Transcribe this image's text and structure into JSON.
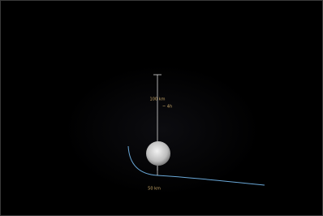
{
  "labels": {
    "apoapsis": "100 km",
    "marker": "~ 4h",
    "periapsis": "50 km"
  }
}
